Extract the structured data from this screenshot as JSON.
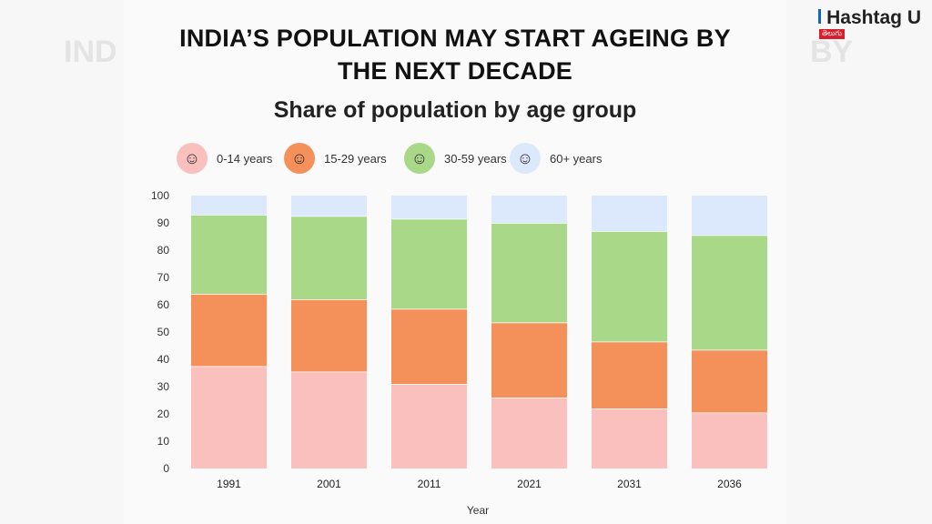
{
  "brand": {
    "name": "Hashtag U",
    "sub": "తెలుగు"
  },
  "background": {
    "ghost_left": "IND",
    "ghost_right": "BY"
  },
  "chart_data": {
    "type": "bar",
    "stacked": true,
    "title": "INDIA’S POPULATION MAY START AGEING BY THE NEXT DECADE",
    "title_line1": "INDIA’S POPULATION MAY START AGEING BY",
    "title_line2": "THE NEXT DECADE",
    "subtitle": "Share of population by age group",
    "xlabel": "Year",
    "ylabel": "",
    "ylim": [
      0,
      100
    ],
    "yticks": [
      "0",
      "10",
      "20",
      "30",
      "40",
      "50",
      "60",
      "70",
      "80",
      "90",
      "100"
    ],
    "categories": [
      "1991",
      "2001",
      "2011",
      "2021",
      "2031",
      "2036"
    ],
    "series": [
      {
        "name": "0-14 years",
        "color": "#f9c0bd",
        "icon": "child-icon",
        "values": [
          37.5,
          35.5,
          31,
          26,
          22,
          20.5
        ]
      },
      {
        "name": "15-29 years",
        "color": "#f4915a",
        "icon": "young-adult-icon",
        "values": [
          26.5,
          26.5,
          27.5,
          27.5,
          24.5,
          23
        ]
      },
      {
        "name": "30-59 years",
        "color": "#a9d889",
        "icon": "adult-icon",
        "values": [
          29,
          30.5,
          33,
          36.5,
          40.5,
          42
        ]
      },
      {
        "name": "60+ years",
        "color": "#dce8fb",
        "icon": "elderly-icon",
        "values": [
          7,
          7.5,
          8.5,
          10,
          13,
          14.5
        ]
      }
    ],
    "legend_position": "top"
  }
}
